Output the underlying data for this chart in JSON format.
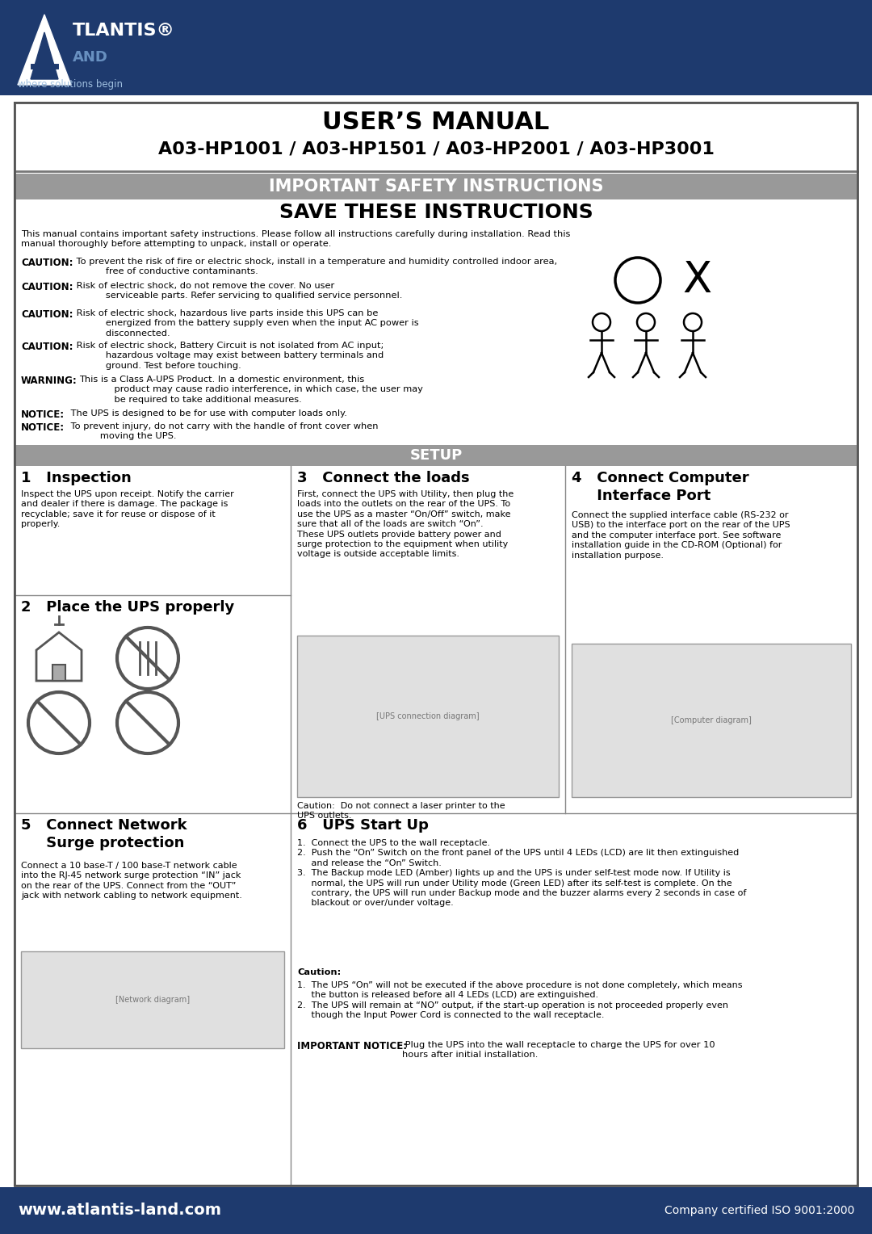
{
  "bg_header_color": "#1e3a6e",
  "bg_white": "#ffffff",
  "bg_gray_banner": "#999999",
  "text_white": "#ffffff",
  "text_black": "#000000",
  "header_title": "USER’S MANUAL",
  "header_subtitle": "A03-HP1001 / A03-HP1501 / A03-HP2001 / A03-HP3001",
  "safety_banner": "IMPORTANT SAFETY INSTRUCTIONS",
  "save_title": "SAVE THESE INSTRUCTIONS",
  "footer_left": "www.atlantis-land.com",
  "footer_right": "Company certified ISO 9001:2000",
  "setup_banner": "SETUP",
  "col1_h1": "1   Inspection",
  "col1_p1": "Inspect the UPS upon receipt. Notify the carrier\nand dealer if there is damage. The package is\nrecyclable; save it for reuse or dispose of it\nproperly.",
  "col1_h2": "2   Place the UPS properly",
  "col2_h1": "3   Connect the loads",
  "col2_p1": "First, connect the UPS with Utility, then plug the\nloads into the outlets on the rear of the UPS. To\nuse the UPS as a master “On/Off” switch, make\nsure that all of the loads are switch “On”.\nThese UPS outlets provide battery power and\nsurge protection to the equipment when utility\nvoltage is outside acceptable limits.",
  "col2_caution": "Caution:  Do not connect a laser printer to the\nUPS outlets.",
  "col3_h1": "4   Connect Computer\n     Interface Port",
  "col3_p1": "Connect the supplied interface cable (RS-232 or\nUSB) to the interface port on the rear of the UPS\nand the computer interface port. See software\ninstallation guide in the CD-ROM (Optional) for\ninstallation purpose.",
  "col4_h1": "5   Connect Network\n     Surge protection",
  "col4_p1": "Connect a 10 base-T / 100 base-T network cable\ninto the RJ-45 network surge protection “IN” jack\non the rear of the UPS. Connect from the “OUT”\njack with network cabling to network equipment.",
  "col5_h1": "6   UPS Start Up",
  "col5_p1": "1.  Connect the UPS to the wall receptacle.\n2.  Push the “On” Switch on the front panel of the UPS until 4 LEDs (LCD) are lit then extinguished\n     and release the “On” Switch.\n3.  The Backup mode LED (Amber) lights up and the UPS is under self-test mode now. If Utility is\n     normal, the UPS will run under Utility mode (Green LED) after its self-test is complete. On the\n     contrary, the UPS will run under Backup mode and the buzzer alarms every 2 seconds in case of\n     blackout or over/under voltage.",
  "col5_caution_title": "Caution:",
  "col5_caution": "1.  The UPS “On” will not be executed if the above procedure is not done completely, which means\n     the button is released before all 4 LEDs (LCD) are extinguished.\n2.  The UPS will remain at “NO” output, if the start-up operation is not proceeded properly even\n     though the Input Power Cord is connected to the wall receptacle.",
  "col5_notice_bold": "IMPORTANT NOTICE:",
  "col5_notice_rest": " Plug the UPS into the wall receptacle to charge the UPS for over 10\nhours after initial installation.",
  "body_intro": "This manual contains important safety instructions. Please follow all instructions carefully during installation. Read this\nmanual thoroughly before attempting to unpack, install or operate.",
  "c1_bold": "CAUTION:",
  "c1_rest": " To prevent the risk of fire or electric shock, install in a temperature and humidity controlled indoor area,\n           free of conductive contaminants.",
  "c2_bold": "CAUTION:",
  "c2_rest": " Risk of electric shock, do not remove the cover. No user\n           serviceable parts. Refer servicing to qualified service personnel.",
  "c3_bold": "CAUTION:",
  "c3_rest": " Risk of electric shock, hazardous live parts inside this UPS can be\n           energized from the battery supply even when the input AC power is\n           disconnected.",
  "c4_bold": "CAUTION:",
  "c4_rest": " Risk of electric shock, Battery Circuit is not isolated from AC input;\n           hazardous voltage may exist between battery terminals and\n           ground. Test before touching.",
  "w1_bold": "WARNING:",
  "w1_rest": "This is a Class A-UPS Product. In a domestic environment, this\n            product may cause radio interference, in which case, the user may\n            be required to take additional measures.",
  "n1_bold": "NOTICE:",
  "n1_rest": " The UPS is designed to be for use with computer loads only.",
  "n2_bold": "NOTICE:",
  "n2_rest": " To prevent injury, do not carry with the handle of front cover when\n           moving the UPS."
}
